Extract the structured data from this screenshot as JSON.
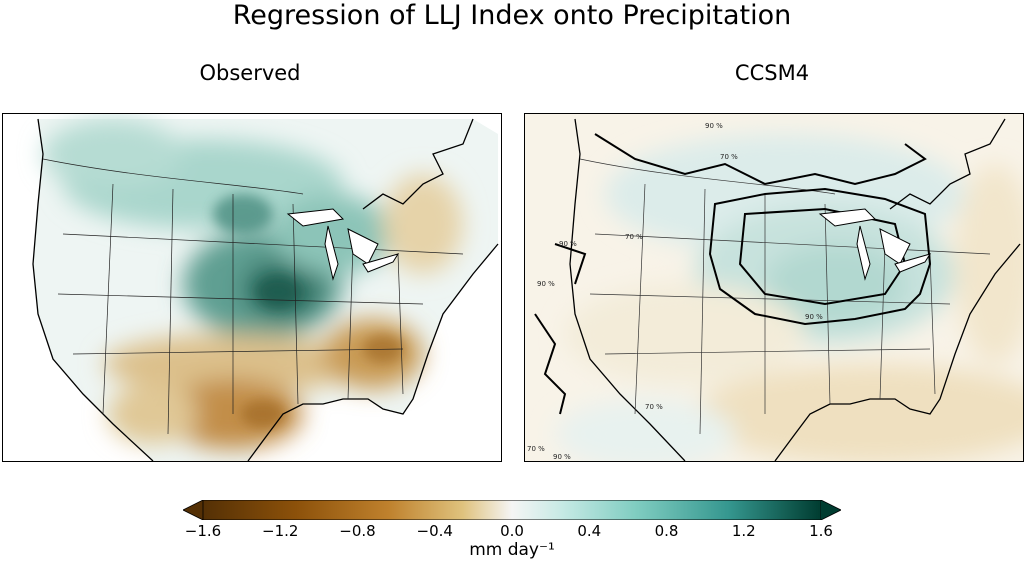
{
  "figure": {
    "title": "Regression of LLJ Index onto Precipitation"
  },
  "panels": [
    {
      "title": "Observed"
    },
    {
      "title": "CCSM4"
    }
  ],
  "contour_labels": [
    "90 %",
    "70 %"
  ],
  "colorbar": {
    "label": "mm day⁻¹",
    "ticks": [
      "−1.6",
      "−1.2",
      "−0.8",
      "−0.4",
      "0.0",
      "0.4",
      "0.8",
      "1.2",
      "1.6"
    ],
    "range": [
      -1.6,
      1.6
    ],
    "colors_negative": "#543005",
    "colors_neutral": "#f5f5f5",
    "colors_positive": "#003c30"
  }
}
